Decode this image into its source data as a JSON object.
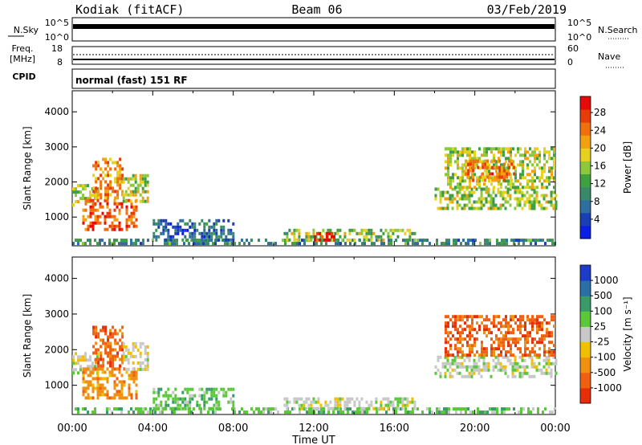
{
  "header": {
    "station": "Kodiak (fitACF)",
    "beam": "Beam 06",
    "date": "03/Feb/2019"
  },
  "strips": {
    "nsky_label": "N.Sky",
    "nsky_ticks": [
      "10^5",
      "10^0"
    ],
    "nsearch_label": "N.Search",
    "nsearch_ticks": [
      "10^5",
      "10^0"
    ],
    "freq_label_1": "Freq.",
    "freq_label_2": "[MHz]",
    "freq_ticks": [
      "18",
      "8"
    ],
    "nave_label": "Nave",
    "nave_ticks": [
      "60",
      "0"
    ],
    "cpid_label": "CPID",
    "cpid_value": "normal (fast) 151 RF"
  },
  "x_axis": {
    "label": "Time UT",
    "ticks": [
      "00:00",
      "04:00",
      "08:00",
      "12:00",
      "16:00",
      "20:00",
      "00:00"
    ]
  },
  "chart_data": [
    {
      "type": "heatmap",
      "name": "power-panel",
      "ylabel": "Slant Range [km]",
      "yticks": [
        "1000",
        "2000",
        "3000",
        "4000"
      ],
      "ylim": [
        180,
        4600
      ],
      "xlim": [
        0,
        24
      ],
      "colorbar": {
        "label": "Power [dB]",
        "ticks": [
          "4",
          "8",
          "12",
          "16",
          "20",
          "24",
          "28"
        ],
        "colors": [
          "#0a1ee6",
          "#1a3fb4",
          "#2f6fa0",
          "#3a8a6a",
          "#3fa040",
          "#8cc83c",
          "#e6d21e",
          "#f0a010",
          "#f07010",
          "#e63c0a",
          "#e60a0a"
        ]
      },
      "regions": [
        {
          "t0": 0.0,
          "t1": 1.2,
          "r0": 1300,
          "r1": 1900,
          "level": 0.55
        },
        {
          "t0": 0.5,
          "t1": 3.2,
          "r0": 600,
          "r1": 1500,
          "level": 0.85
        },
        {
          "t0": 1.0,
          "t1": 2.5,
          "r0": 1500,
          "r1": 2600,
          "level": 0.75
        },
        {
          "t0": 2.5,
          "t1": 3.8,
          "r0": 1400,
          "r1": 2200,
          "level": 0.55
        },
        {
          "t0": 0.0,
          "t1": 24.0,
          "r0": 200,
          "r1": 330,
          "level": 0.3
        },
        {
          "t0": 10.5,
          "t1": 17.0,
          "r0": 300,
          "r1": 650,
          "level": 0.5
        },
        {
          "t0": 12.0,
          "t1": 13.0,
          "r0": 300,
          "r1": 500,
          "level": 0.95
        },
        {
          "t0": 18.0,
          "t1": 24.0,
          "r0": 1200,
          "r1": 1800,
          "level": 0.5
        },
        {
          "t0": 18.5,
          "t1": 24.0,
          "r0": 1800,
          "r1": 2900,
          "level": 0.55
        },
        {
          "t0": 19.5,
          "t1": 22.0,
          "r0": 2000,
          "r1": 2600,
          "level": 0.78
        },
        {
          "t0": 4.0,
          "t1": 8.0,
          "r0": 300,
          "r1": 900,
          "level": 0.2
        }
      ]
    },
    {
      "type": "heatmap",
      "name": "velocity-panel",
      "ylabel": "Slant Range [km]",
      "yticks": [
        "1000",
        "2000",
        "3000",
        "4000"
      ],
      "ylim": [
        180,
        4600
      ],
      "xlim": [
        0,
        24
      ],
      "colorbar": {
        "label": "Velocity [m s⁻¹]",
        "ticks": [
          "1000",
          "500",
          "100",
          "25",
          "-25",
          "-100",
          "-500",
          "-1000"
        ],
        "colors": [
          "#1e3cc8",
          "#2a6fa8",
          "#3a9a6a",
          "#5ac83a",
          "#c8c8c8",
          "#f0c000",
          "#f09010",
          "#f06010",
          "#e62e0a"
        ]
      },
      "regions": [
        {
          "t0": 0.0,
          "t1": 1.2,
          "r0": 1300,
          "r1": 1900,
          "level": 4
        },
        {
          "t0": 0.5,
          "t1": 3.2,
          "r0": 600,
          "r1": 1500,
          "level": 6
        },
        {
          "t0": 1.0,
          "t1": 2.5,
          "r0": 1500,
          "r1": 2600,
          "level": 7
        },
        {
          "t0": 2.5,
          "t1": 3.8,
          "r0": 1400,
          "r1": 2200,
          "level": 4
        },
        {
          "t0": 0.0,
          "t1": 24.0,
          "r0": 200,
          "r1": 330,
          "level": 3
        },
        {
          "t0": 10.5,
          "t1": 17.0,
          "r0": 300,
          "r1": 650,
          "level": 4
        },
        {
          "t0": 18.0,
          "t1": 24.0,
          "r0": 1200,
          "r1": 1800,
          "level": 4
        },
        {
          "t0": 18.5,
          "t1": 24.0,
          "r0": 1800,
          "r1": 2900,
          "level": 7
        },
        {
          "t0": 4.0,
          "t1": 8.0,
          "r0": 300,
          "r1": 900,
          "level": 3
        }
      ]
    }
  ]
}
